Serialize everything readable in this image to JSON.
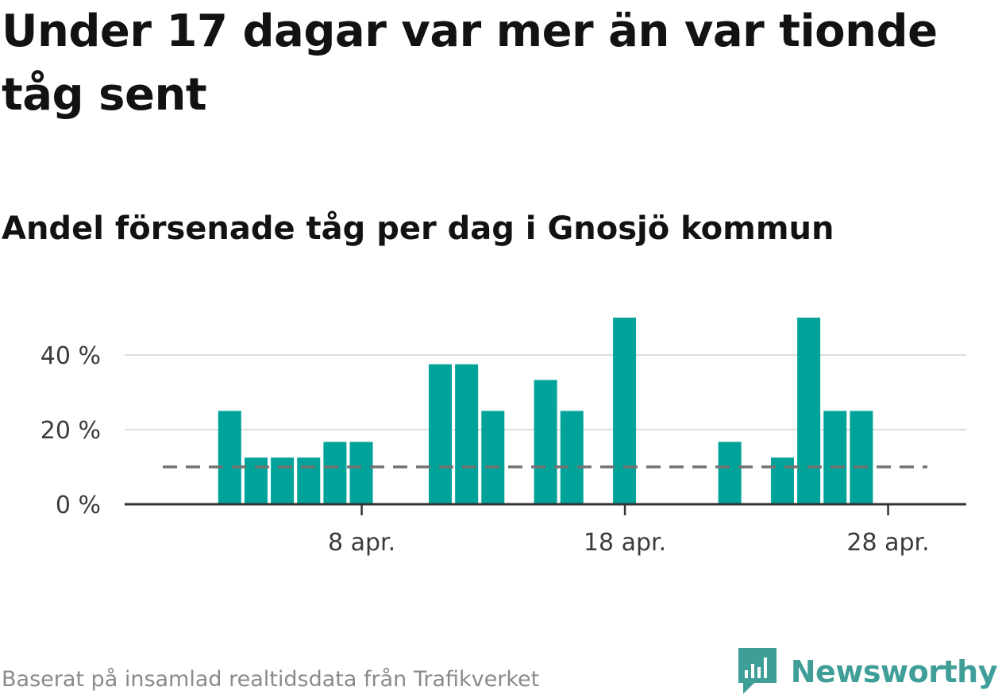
{
  "title": "Under 17 dagar var mer än var tionde tåg sent",
  "subtitle": "Andel försenade tåg per dag i Gnosjö kommun",
  "footer": "Baserat på insamlad realtidsdata från Trafikverket",
  "brand": {
    "name": "Newsworthy",
    "icon": "newsworthy-logo-icon",
    "color": "#3f9e97"
  },
  "chart_data": {
    "type": "bar",
    "title": "Andel försenade tåg per dag i Gnosjö kommun",
    "xlabel": "",
    "ylabel": "",
    "colors": {
      "bar": "#00a39a",
      "reference_line": "#727272",
      "grid": "#dddddd",
      "axis": "#333333"
    },
    "x": [
      "1 apr.",
      "2 apr.",
      "3 apr.",
      "4 apr.",
      "5 apr.",
      "6 apr.",
      "7 apr.",
      "8 apr.",
      "9 apr.",
      "10 apr.",
      "11 apr.",
      "12 apr.",
      "13 apr.",
      "14 apr.",
      "15 apr.",
      "16 apr.",
      "17 apr.",
      "18 apr.",
      "19 apr.",
      "20 apr.",
      "21 apr.",
      "22 apr.",
      "23 apr.",
      "24 apr.",
      "25 apr.",
      "26 apr.",
      "27 apr.",
      "28 apr.",
      "29 apr.",
      "30 apr."
    ],
    "values": [
      0,
      0,
      25,
      12.5,
      12.5,
      12.5,
      16.7,
      16.7,
      0,
      0,
      37.5,
      37.5,
      25,
      0,
      33.3,
      25,
      0,
      50,
      0,
      0,
      0,
      16.7,
      0,
      12.5,
      50,
      25,
      25,
      0,
      0,
      0
    ],
    "reference_line": {
      "value": 10,
      "style": "dashed"
    },
    "ylim": [
      0,
      55
    ],
    "yticks": [
      0,
      20,
      40
    ],
    "ytick_labels": [
      "0 %",
      "20 %",
      "40 %"
    ],
    "xticks": [
      "8 apr.",
      "18 apr.",
      "28 apr."
    ],
    "xtick_index": [
      7,
      17,
      27
    ],
    "grid": true,
    "legend": "none"
  }
}
